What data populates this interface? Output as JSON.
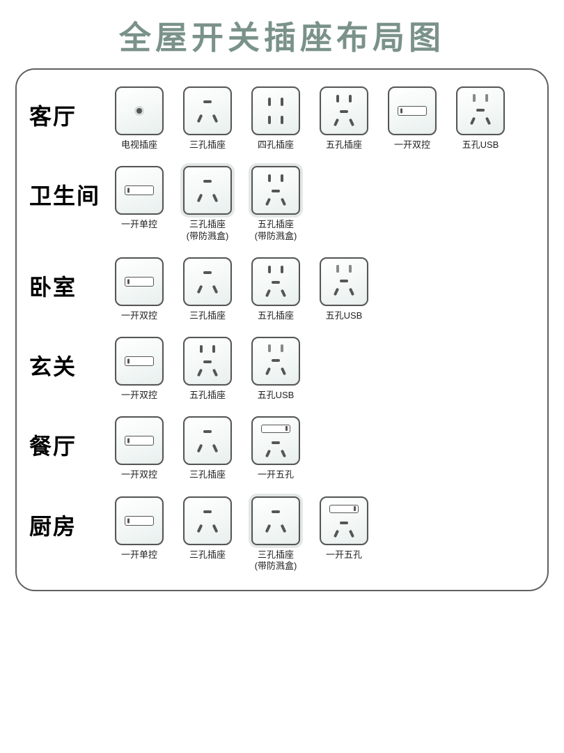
{
  "title": "全屋开关插座布局图",
  "style": {
    "title_color": "#7a9289",
    "title_fontsize": 46,
    "panel_border_color": "#606060",
    "panel_border_radius": 28,
    "outlet_size": 70,
    "outlet_border_color": "#555555",
    "outlet_bg_gradient": [
      "#ffffff",
      "#f2f7f6",
      "#e8efed"
    ],
    "label_fontsize": 13,
    "room_label_fontsize": 32,
    "background": "#ffffff"
  },
  "rooms": [
    {
      "name": "客厅",
      "items": [
        {
          "type": "tv",
          "label": "电视插座"
        },
        {
          "type": "p3",
          "label": "三孔插座"
        },
        {
          "type": "p4",
          "label": "四孔插座"
        },
        {
          "type": "p5",
          "label": "五孔插座"
        },
        {
          "type": "sw",
          "label": "一开双控"
        },
        {
          "type": "p5u",
          "label": "五孔USB"
        }
      ]
    },
    {
      "name": "卫生间",
      "items": [
        {
          "type": "sw",
          "label": "一开单控"
        },
        {
          "type": "p3",
          "label": "三孔插座\n(带防溅盒)",
          "splash": true
        },
        {
          "type": "p5",
          "label": "五孔插座\n(带防溅盒)",
          "splash": true
        }
      ]
    },
    {
      "name": "卧室",
      "items": [
        {
          "type": "sw",
          "label": "一开双控"
        },
        {
          "type": "p3",
          "label": "三孔插座"
        },
        {
          "type": "p5",
          "label": "五孔插座"
        },
        {
          "type": "p5u",
          "label": "五孔USB"
        }
      ]
    },
    {
      "name": "玄关",
      "items": [
        {
          "type": "sw",
          "label": "一开双控"
        },
        {
          "type": "p5",
          "label": "五孔插座"
        },
        {
          "type": "p5u",
          "label": "五孔USB"
        }
      ]
    },
    {
      "name": "餐厅",
      "items": [
        {
          "type": "sw",
          "label": "一开双控"
        },
        {
          "type": "p3",
          "label": "三孔插座"
        },
        {
          "type": "sw5",
          "label": "一开五孔"
        }
      ]
    },
    {
      "name": "厨房",
      "items": [
        {
          "type": "sw",
          "label": "一开单控"
        },
        {
          "type": "p3",
          "label": "三孔插座"
        },
        {
          "type": "p3",
          "label": "三孔插座\n(带防溅盒)",
          "splash": true
        },
        {
          "type": "sw5",
          "label": "一开五孔"
        }
      ]
    }
  ]
}
